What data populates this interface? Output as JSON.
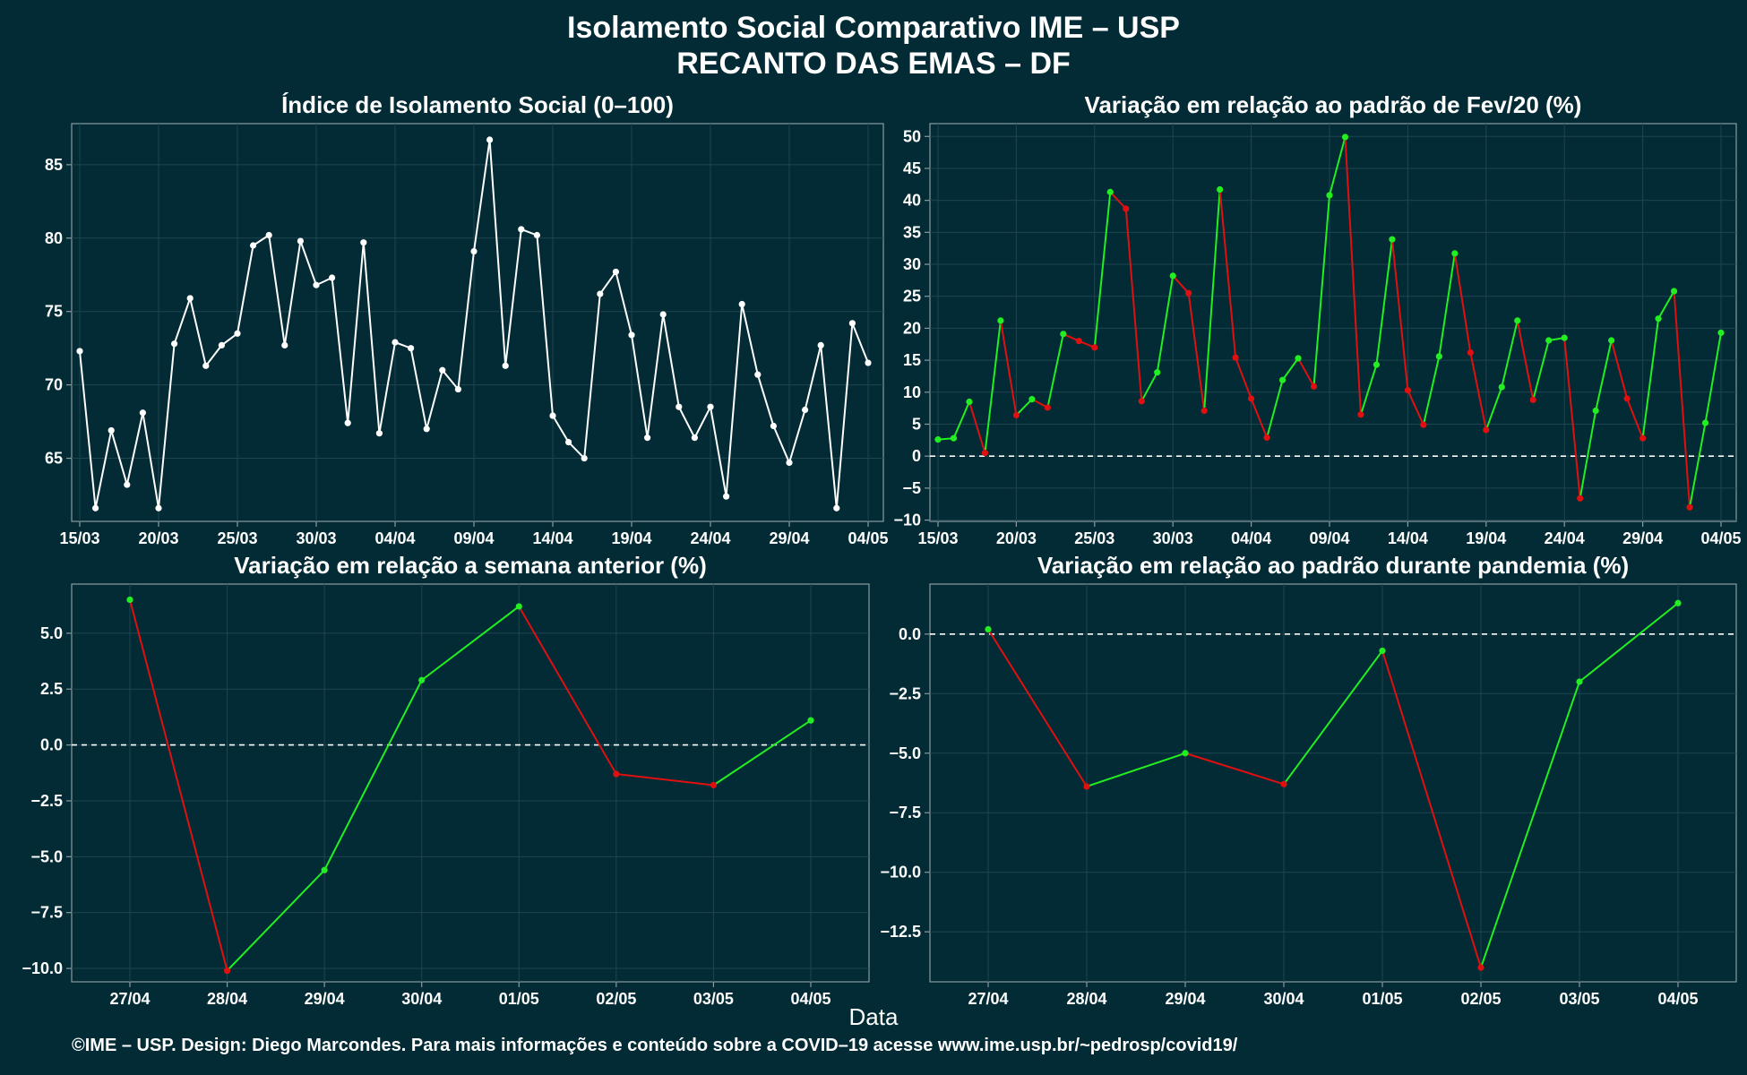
{
  "title_line1": "Isolamento Social Comparativo IME – USP",
  "title_line2": "RECANTO DAS EMAS – DF",
  "x_axis_label": "Data",
  "footer": "©IME – USP. Design: Diego Marcondes. Para mais informações e conteúdo sobre a COVID–19 acesse www.ime.usp.br/~pedrosp/covid19/",
  "colors": {
    "background": "#022b35",
    "panel_border": "#8a9aa0",
    "grid": "#1f4550",
    "line_white": "#ffffff",
    "positive": "#22ee22",
    "negative": "#e01010"
  },
  "chart_data": [
    {
      "id": "p1",
      "type": "line",
      "title": "Índice de Isolamento Social (0–100)",
      "xlabel": "",
      "ylabel": "",
      "start_date": "15/03",
      "x_tick_labels": [
        "15/03",
        "20/03",
        "25/03",
        "30/03",
        "04/04",
        "09/04",
        "14/04",
        "19/04",
        "24/04",
        "29/04",
        "04/05"
      ],
      "y_ticks": [
        65,
        70,
        75,
        80,
        85
      ],
      "ylim": [
        60.7,
        87.8
      ],
      "color_mode": "white",
      "zero_line": false,
      "values": [
        72.3,
        61.6,
        66.9,
        63.2,
        68.1,
        61.6,
        72.8,
        75.9,
        71.3,
        72.7,
        73.5,
        79.5,
        80.2,
        72.7,
        79.8,
        76.8,
        77.3,
        67.4,
        79.7,
        66.7,
        72.9,
        72.5,
        67.0,
        71.0,
        69.7,
        79.1,
        86.7,
        71.3,
        80.6,
        80.2,
        67.9,
        66.1,
        65.0,
        76.2,
        77.7,
        73.4,
        66.4,
        74.8,
        68.5,
        66.4,
        68.5,
        62.4,
        75.5,
        70.7,
        67.2,
        64.7,
        68.3,
        72.7,
        61.6,
        74.2,
        71.5
      ]
    },
    {
      "id": "p2",
      "type": "line",
      "title": "Variação em relação ao padrão de Fev/20 (%)",
      "xlabel": "",
      "ylabel": "",
      "start_date": "15/03",
      "x_tick_labels": [
        "15/03",
        "20/03",
        "25/03",
        "30/03",
        "04/04",
        "09/04",
        "14/04",
        "19/04",
        "24/04",
        "29/04",
        "04/05"
      ],
      "y_ticks": [
        -10,
        -5,
        0,
        5,
        10,
        15,
        20,
        25,
        30,
        35,
        40,
        45,
        50
      ],
      "ylim": [
        -10.2,
        52.0
      ],
      "color_mode": "sign",
      "zero_line": true,
      "values": [
        2.6,
        2.8,
        8.5,
        0.5,
        21.2,
        6.4,
        8.9,
        7.6,
        19.1,
        18.0,
        17.0,
        41.3,
        38.7,
        8.6,
        13.1,
        28.2,
        25.5,
        7.1,
        41.7,
        15.4,
        9.0,
        2.9,
        11.9,
        15.3,
        10.9,
        40.8,
        49.9,
        6.5,
        14.3,
        33.9,
        10.3,
        4.9,
        15.6,
        31.7,
        16.2,
        4.1,
        10.8,
        21.2,
        8.8,
        18.1,
        18.5,
        -6.6,
        7.1,
        18.1,
        9.0,
        2.8,
        21.5,
        25.8,
        -8.0,
        5.2,
        19.3
      ]
    },
    {
      "id": "p3",
      "type": "line",
      "title": "Variação em relação a semana anterior (%)",
      "xlabel": "",
      "ylabel": "",
      "categories": [
        "27/04",
        "28/04",
        "29/04",
        "30/04",
        "01/05",
        "02/05",
        "03/05",
        "04/05"
      ],
      "y_ticks": [
        -10.0,
        -7.5,
        -5.0,
        -2.5,
        0.0,
        2.5,
        5.0
      ],
      "y_tick_labels": [
        "−10.0",
        "−7.5",
        "−5.0",
        "−2.5",
        "0.0",
        "2.5",
        "5.0"
      ],
      "ylim": [
        -10.6,
        7.2
      ],
      "color_mode": "sign",
      "zero_line": true,
      "values": [
        6.5,
        -10.1,
        -5.6,
        2.9,
        6.2,
        -1.3,
        -1.8,
        1.1
      ]
    },
    {
      "id": "p4",
      "type": "line",
      "title": "Variação em relação ao padrão durante pandemia (%)",
      "xlabel": "",
      "ylabel": "",
      "categories": [
        "27/04",
        "28/04",
        "29/04",
        "30/04",
        "01/05",
        "02/05",
        "03/05",
        "04/05"
      ],
      "y_ticks": [
        -12.5,
        -10.0,
        -7.5,
        -5.0,
        -2.5,
        0.0
      ],
      "y_tick_labels": [
        "−12.5",
        "−10.0",
        "−7.5",
        "−5.0",
        "−2.5",
        "0.0"
      ],
      "ylim": [
        -14.6,
        2.1
      ],
      "color_mode": "sign",
      "zero_line": true,
      "values": [
        0.2,
        -6.4,
        -5.0,
        -6.3,
        -0.7,
        -14.0,
        -2.0,
        1.3
      ]
    }
  ]
}
